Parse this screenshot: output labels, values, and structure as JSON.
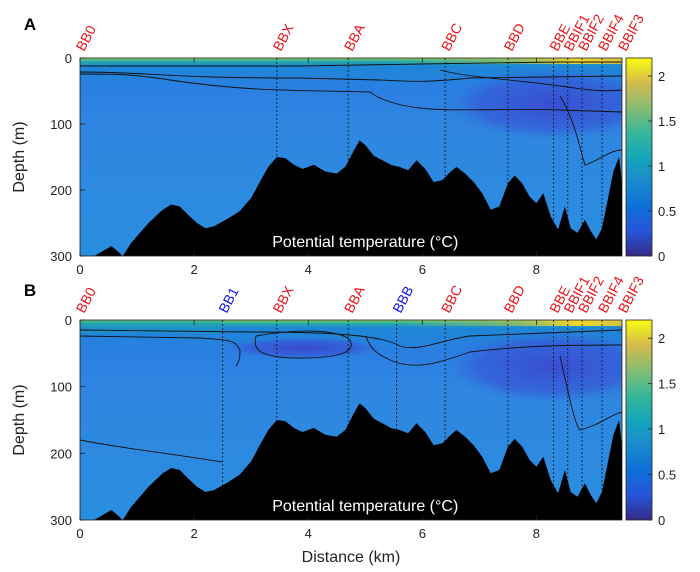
{
  "chart_data": [
    {
      "panel": "A",
      "type": "heatmap",
      "annotation": "Potential temperature (°C)",
      "xlabel": "",
      "ylabel": "Depth (m)",
      "xlim": [
        0,
        9.5
      ],
      "ylim": [
        0,
        300
      ],
      "x_ticks": [
        0,
        2,
        4,
        6,
        8
      ],
      "y_ticks": [
        0,
        100,
        200,
        300
      ],
      "colorbar": {
        "range": [
          0,
          2.2
        ],
        "ticks": [
          0,
          0.5,
          1,
          1.5,
          2
        ],
        "colormap": "parula"
      },
      "stations": [
        {
          "name": "BB0",
          "x": 0.0,
          "color": "red"
        },
        {
          "name": "BBX",
          "x": 3.45,
          "color": "red"
        },
        {
          "name": "BBA",
          "x": 4.7,
          "color": "red"
        },
        {
          "name": "BBC",
          "x": 6.4,
          "color": "red"
        },
        {
          "name": "BBD",
          "x": 7.5,
          "color": "red"
        },
        {
          "name": "BBE",
          "x": 8.3,
          "color": "red"
        },
        {
          "name": "BBIF1",
          "x": 8.55,
          "color": "red"
        },
        {
          "name": "BBIF2",
          "x": 8.8,
          "color": "red"
        },
        {
          "name": "BBIF4",
          "x": 9.15,
          "color": "red"
        },
        {
          "name": "BBIF3",
          "x": 9.5,
          "color": "red"
        }
      ],
      "bathymetry": {
        "x": [
          0,
          0.25,
          0.45,
          0.55,
          0.65,
          0.75,
          0.9,
          1.2,
          1.45,
          1.6,
          1.75,
          1.9,
          2.05,
          2.2,
          2.35,
          2.6,
          2.8,
          3.0,
          3.15,
          3.3,
          3.45,
          3.6,
          3.75,
          3.9,
          4.1,
          4.3,
          4.5,
          4.65,
          4.8,
          4.9,
          5.0,
          5.15,
          5.3,
          5.45,
          5.6,
          5.75,
          5.9,
          6.05,
          6.2,
          6.35,
          6.5,
          6.6,
          6.75,
          6.9,
          7.05,
          7.2,
          7.35,
          7.5,
          7.62,
          7.75,
          7.88,
          8.0,
          8.12,
          8.25,
          8.38,
          8.5,
          8.6,
          8.72,
          8.85,
          8.95,
          9.05,
          9.15,
          9.25,
          9.35,
          9.45,
          9.5
        ],
        "depth": [
          300,
          300,
          290,
          285,
          292,
          300,
          280,
          250,
          230,
          222,
          225,
          238,
          250,
          258,
          255,
          243,
          232,
          212,
          188,
          165,
          150,
          152,
          162,
          168,
          162,
          172,
          175,
          165,
          140,
          125,
          132,
          148,
          155,
          162,
          165,
          170,
          155,
          168,
          188,
          185,
          172,
          165,
          175,
          188,
          205,
          230,
          225,
          190,
          178,
          190,
          210,
          220,
          205,
          240,
          260,
          225,
          258,
          265,
          245,
          262,
          275,
          258,
          215,
          172,
          150,
          190
        ]
      },
      "isotherm_lines": 5
    },
    {
      "panel": "B",
      "type": "heatmap",
      "annotation": "Potential temperature (°C)",
      "xlabel": "Distance (km)",
      "ylabel": "Depth (m)",
      "xlim": [
        0,
        9.5
      ],
      "ylim": [
        0,
        300
      ],
      "x_ticks": [
        0,
        2,
        4,
        6,
        8
      ],
      "y_ticks": [
        0,
        100,
        200,
        300
      ],
      "colorbar": {
        "range": [
          0,
          2.2
        ],
        "ticks": [
          0,
          0.5,
          1,
          1.5,
          2
        ],
        "colormap": "parula"
      },
      "stations": [
        {
          "name": "BB0",
          "x": 0.0,
          "color": "red"
        },
        {
          "name": "BB1",
          "x": 2.5,
          "color": "blue"
        },
        {
          "name": "BBX",
          "x": 3.45,
          "color": "red"
        },
        {
          "name": "BBA",
          "x": 4.7,
          "color": "red"
        },
        {
          "name": "BBB",
          "x": 5.55,
          "color": "blue"
        },
        {
          "name": "BBC",
          "x": 6.4,
          "color": "red"
        },
        {
          "name": "BBD",
          "x": 7.5,
          "color": "red"
        },
        {
          "name": "BBE",
          "x": 8.3,
          "color": "red"
        },
        {
          "name": "BBIF1",
          "x": 8.55,
          "color": "red"
        },
        {
          "name": "BBIF2",
          "x": 8.8,
          "color": "red"
        },
        {
          "name": "BBIF4",
          "x": 9.15,
          "color": "red"
        },
        {
          "name": "BBIF3",
          "x": 9.5,
          "color": "red"
        }
      ],
      "bathymetry": {
        "x": [
          0,
          0.25,
          0.45,
          0.55,
          0.65,
          0.75,
          0.9,
          1.2,
          1.45,
          1.6,
          1.75,
          1.9,
          2.05,
          2.2,
          2.35,
          2.6,
          2.8,
          3.0,
          3.15,
          3.3,
          3.45,
          3.6,
          3.75,
          3.9,
          4.1,
          4.3,
          4.5,
          4.65,
          4.8,
          4.9,
          5.0,
          5.15,
          5.3,
          5.45,
          5.6,
          5.75,
          5.9,
          6.05,
          6.2,
          6.35,
          6.5,
          6.6,
          6.75,
          6.9,
          7.05,
          7.2,
          7.35,
          7.5,
          7.62,
          7.75,
          7.88,
          8.0,
          8.12,
          8.25,
          8.38,
          8.5,
          8.6,
          8.72,
          8.85,
          8.95,
          9.05,
          9.15,
          9.25,
          9.35,
          9.45,
          9.5
        ],
        "depth": [
          300,
          300,
          290,
          285,
          292,
          300,
          280,
          250,
          230,
          222,
          225,
          238,
          250,
          258,
          255,
          243,
          232,
          212,
          188,
          165,
          150,
          152,
          162,
          168,
          162,
          172,
          175,
          165,
          140,
          125,
          132,
          148,
          155,
          162,
          165,
          170,
          155,
          168,
          188,
          185,
          172,
          165,
          175,
          188,
          205,
          230,
          225,
          190,
          178,
          190,
          210,
          220,
          205,
          240,
          260,
          225,
          258,
          265,
          245,
          262,
          275,
          258,
          215,
          172,
          150,
          190
        ]
      },
      "isotherm_lines": 6
    }
  ]
}
